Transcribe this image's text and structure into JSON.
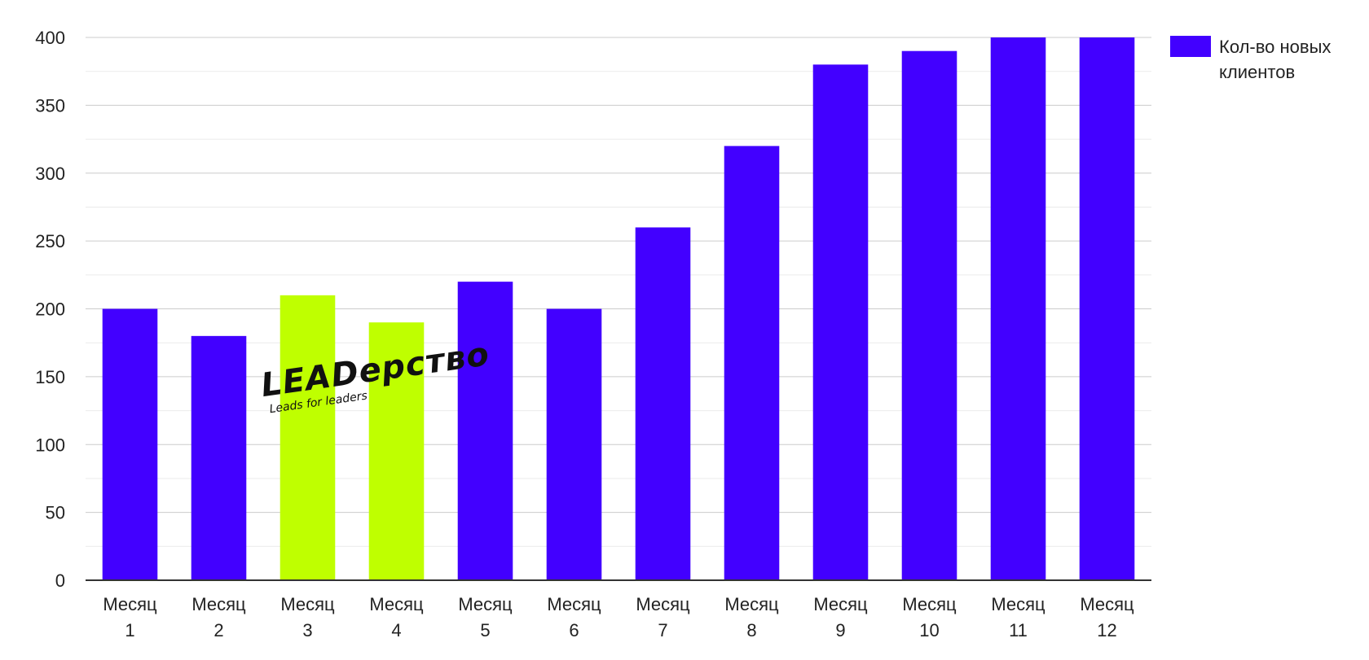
{
  "chart_data": {
    "type": "bar",
    "categories": [
      [
        "Месяц",
        "1"
      ],
      [
        "Месяц",
        "2"
      ],
      [
        "Месяц",
        "3"
      ],
      [
        "Месяц",
        "4"
      ],
      [
        "Месяц",
        "5"
      ],
      [
        "Месяц",
        "6"
      ],
      [
        "Месяц",
        "7"
      ],
      [
        "Месяц",
        "8"
      ],
      [
        "Месяц",
        "9"
      ],
      [
        "Месяц",
        "10"
      ],
      [
        "Месяц",
        "11"
      ],
      [
        "Месяц",
        "12"
      ]
    ],
    "series": [
      {
        "name": "Кол-во новых клиентов",
        "values": [
          200,
          180,
          210,
          190,
          220,
          200,
          260,
          320,
          380,
          390,
          400,
          400
        ],
        "color": "#4200FF",
        "highlight_color": "#BFFF00",
        "highlighted_indices": [
          2,
          3
        ]
      }
    ],
    "ylim": [
      0,
      400
    ],
    "yticks": [
      0,
      50,
      100,
      150,
      200,
      250,
      300,
      350,
      400
    ],
    "grid": true,
    "legend_position": "top-right",
    "title": "",
    "xlabel": "",
    "ylabel": ""
  },
  "legend": {
    "label": "Кол-во новых клиентов"
  },
  "watermark": {
    "title": "LEADерство",
    "subtitle": "Leads for leaders"
  },
  "colors": {
    "grid": "#cccccc",
    "minor_grid": "#ebebeb",
    "axis": "#333333",
    "text": "#222222"
  }
}
